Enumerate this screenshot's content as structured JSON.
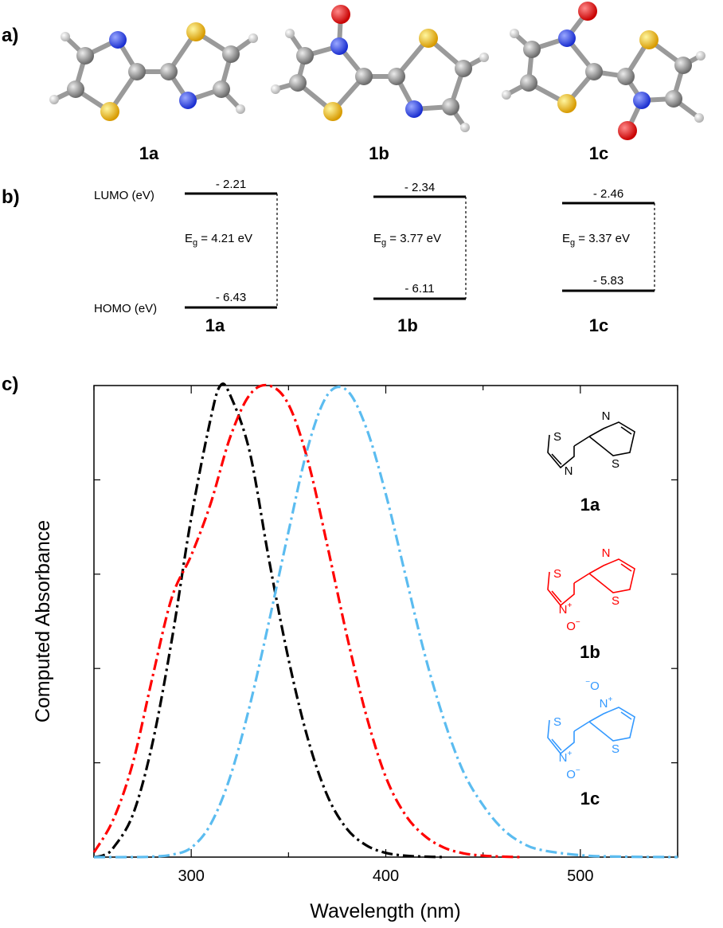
{
  "panels": {
    "a": "a)",
    "b": "b)",
    "c": "c)"
  },
  "molecules": [
    {
      "id": "1a",
      "label": "1a"
    },
    {
      "id": "1b",
      "label": "1b"
    },
    {
      "id": "1c",
      "label": "1c"
    }
  ],
  "energy_levels": {
    "lumo_label": "LUMO (eV)",
    "homo_label": "HOMO (eV)",
    "items": [
      {
        "label": "1a",
        "lumo": "- 2.21",
        "homo": "- 6.43",
        "gap_prefix": "E",
        "gap_sub": "g",
        "gap_value": " = 4.21 eV"
      },
      {
        "label": "1b",
        "lumo": "- 2.34",
        "homo": "- 6.11",
        "gap_prefix": "E",
        "gap_sub": "g",
        "gap_value": " = 3.77 eV"
      },
      {
        "label": "1c",
        "lumo": "- 2.46",
        "homo": "- 5.83",
        "gap_prefix": "E",
        "gap_sub": "g",
        "gap_value": " = 3.37 eV"
      }
    ]
  },
  "structure_legend": [
    {
      "label": "1a",
      "color": "#000000",
      "atoms": {
        "S1": "S",
        "N1": "N",
        "S2": "S",
        "N2": "N"
      }
    },
    {
      "label": "1b",
      "color": "#ff0000",
      "atoms": {
        "S1": "S",
        "N1": "N",
        "N1_charge": "+",
        "O1": "O",
        "O1_charge": "−",
        "S2": "S",
        "N2": "N"
      }
    },
    {
      "label": "1c",
      "color": "#3399ff",
      "atoms": {
        "S1": "S",
        "N1": "N",
        "N1_charge": "+",
        "O1": "O",
        "O1_charge": "−",
        "S2": "S",
        "N2": "N",
        "N2_charge": "+",
        "O2": "O",
        "O2_charge": "−"
      }
    }
  ],
  "chart_data": {
    "type": "line",
    "title": "",
    "xlabel": "Wavelength (nm)",
    "ylabel": "Computed Absorbance",
    "xlim": [
      250,
      550
    ],
    "ylim": [
      0,
      1
    ],
    "xticks": [
      300,
      400,
      500
    ],
    "grid": false,
    "line_style": "dash-dot",
    "series": [
      {
        "name": "1a",
        "color": "#000000",
        "x": [
          250,
          255,
          260,
          270,
          280,
          290,
          300,
          310,
          315,
          320,
          330,
          340,
          350,
          360,
          370,
          380,
          390,
          400,
          410,
          420,
          430
        ],
        "y": [
          0.0,
          0.004,
          0.02,
          0.09,
          0.24,
          0.46,
          0.72,
          0.93,
          1.0,
          0.98,
          0.86,
          0.63,
          0.42,
          0.25,
          0.13,
          0.06,
          0.025,
          0.009,
          0.003,
          0.001,
          0.0
        ]
      },
      {
        "name": "1b",
        "color": "#ff0000",
        "x": [
          250,
          260,
          270,
          280,
          290,
          300,
          310,
          320,
          330,
          340,
          350,
          360,
          370,
          380,
          390,
          400,
          410,
          420,
          430,
          440,
          450,
          460,
          470
        ],
        "y": [
          0.01,
          0.08,
          0.2,
          0.38,
          0.55,
          0.64,
          0.75,
          0.89,
          0.98,
          1.0,
          0.96,
          0.84,
          0.66,
          0.47,
          0.3,
          0.17,
          0.09,
          0.045,
          0.02,
          0.008,
          0.003,
          0.001,
          0.0
        ]
      },
      {
        "name": "1c",
        "color": "#5bbcf0",
        "x": [
          250,
          270,
          280,
          290,
          300,
          310,
          320,
          330,
          340,
          350,
          360,
          370,
          380,
          390,
          400,
          410,
          420,
          430,
          440,
          450,
          460,
          470,
          480,
          500,
          520,
          550
        ],
        "y": [
          0.0,
          0.0,
          0.001,
          0.005,
          0.02,
          0.07,
          0.17,
          0.32,
          0.5,
          0.69,
          0.87,
          0.98,
          0.99,
          0.91,
          0.77,
          0.6,
          0.43,
          0.29,
          0.18,
          0.11,
          0.06,
          0.03,
          0.015,
          0.004,
          0.001,
          0.0
        ]
      }
    ]
  }
}
